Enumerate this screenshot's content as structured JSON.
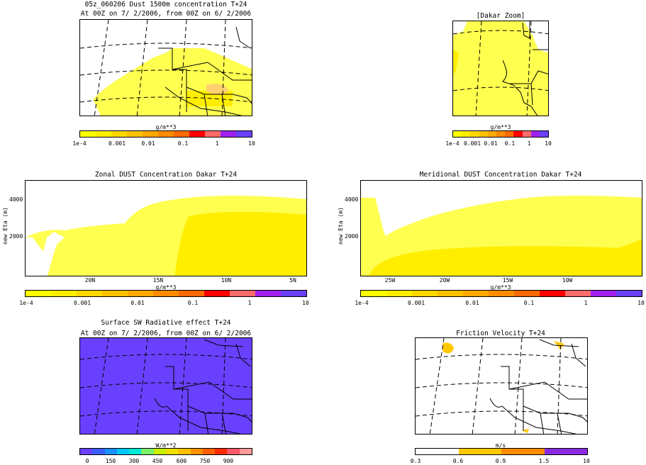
{
  "figure": {
    "top_left": {
      "title": "05z_060206 Dust 1500m concentration T+24",
      "subtitle": "At 00Z on 7/ 2/2006, from 00Z on 6/ 2/2006",
      "colorbar": {
        "unit": "g/m**3",
        "ticks": [
          "1e-4",
          "0.001",
          "0.01",
          "0.1",
          "1",
          "10"
        ]
      }
    },
    "top_right": {
      "title": "[Dakar Zoom]",
      "colorbar": {
        "unit": "g/m**3",
        "ticks": [
          "1e-4",
          "0.001",
          "0.01",
          "0.1",
          "1",
          "10"
        ]
      }
    },
    "middle_left": {
      "title": "Zonal DUST Concentration Dakar T+24",
      "ylabel": "new Eta (m)",
      "yticks": [
        "4000",
        "2000"
      ],
      "xticks": [
        "20N",
        "15N",
        "10N",
        "5N"
      ],
      "colorbar": {
        "unit": "g/m**3",
        "ticks": [
          "1e-4",
          "0.001",
          "0.01",
          "0.1",
          "1",
          "10"
        ]
      }
    },
    "middle_right": {
      "title": "Meridional DUST Concentration Dakar T+24",
      "ylabel": "new Eta (m)",
      "yticks": [
        "4000",
        "2000"
      ],
      "xticks": [
        "25W",
        "20W",
        "15W",
        "10W"
      ],
      "colorbar": {
        "unit": "g/m**3",
        "ticks": [
          "1e-4",
          "0.001",
          "0.01",
          "0.1",
          "1",
          "10"
        ]
      }
    },
    "bottom_left": {
      "title": "Surface SW Radiative effect T+24",
      "subtitle": "At 00Z on 7/ 2/2006, from 00Z on 6/ 2/2006",
      "colorbar": {
        "unit": "W/m**2",
        "ticks": [
          "0",
          "150",
          "300",
          "450",
          "600",
          "750",
          "900"
        ]
      }
    },
    "bottom_right": {
      "title": "Friction Velocity T+24",
      "colorbar": {
        "unit": "m/s",
        "ticks": [
          "0.3",
          "0.6",
          "0.9",
          "1.5",
          "10"
        ]
      }
    }
  },
  "colors": {
    "dust_scale": [
      "#ffff00",
      "#ffee00",
      "#ffd800",
      "#ffc000",
      "#ffa800",
      "#ff8c00",
      "#ff6a00",
      "#ff0000",
      "#ff6a6a",
      "#a020f0",
      "#6a40ff"
    ],
    "sw_scale": [
      "#6a40ff",
      "#3a5cff",
      "#1a90ff",
      "#00c8ff",
      "#00e8d8",
      "#7cf06a",
      "#c8f000",
      "#f0e000",
      "#ffc000",
      "#ff9000",
      "#ff6000",
      "#ff2a00",
      "#ff5a6a",
      "#ff9a9a"
    ],
    "ustar_scale": [
      "#ffffff",
      "#ffc800",
      "#ff8c00",
      "#8a2be2"
    ],
    "field_light": "#ffff50",
    "field_mid": "#ffee00",
    "sw_field": "#6a40ff"
  }
}
